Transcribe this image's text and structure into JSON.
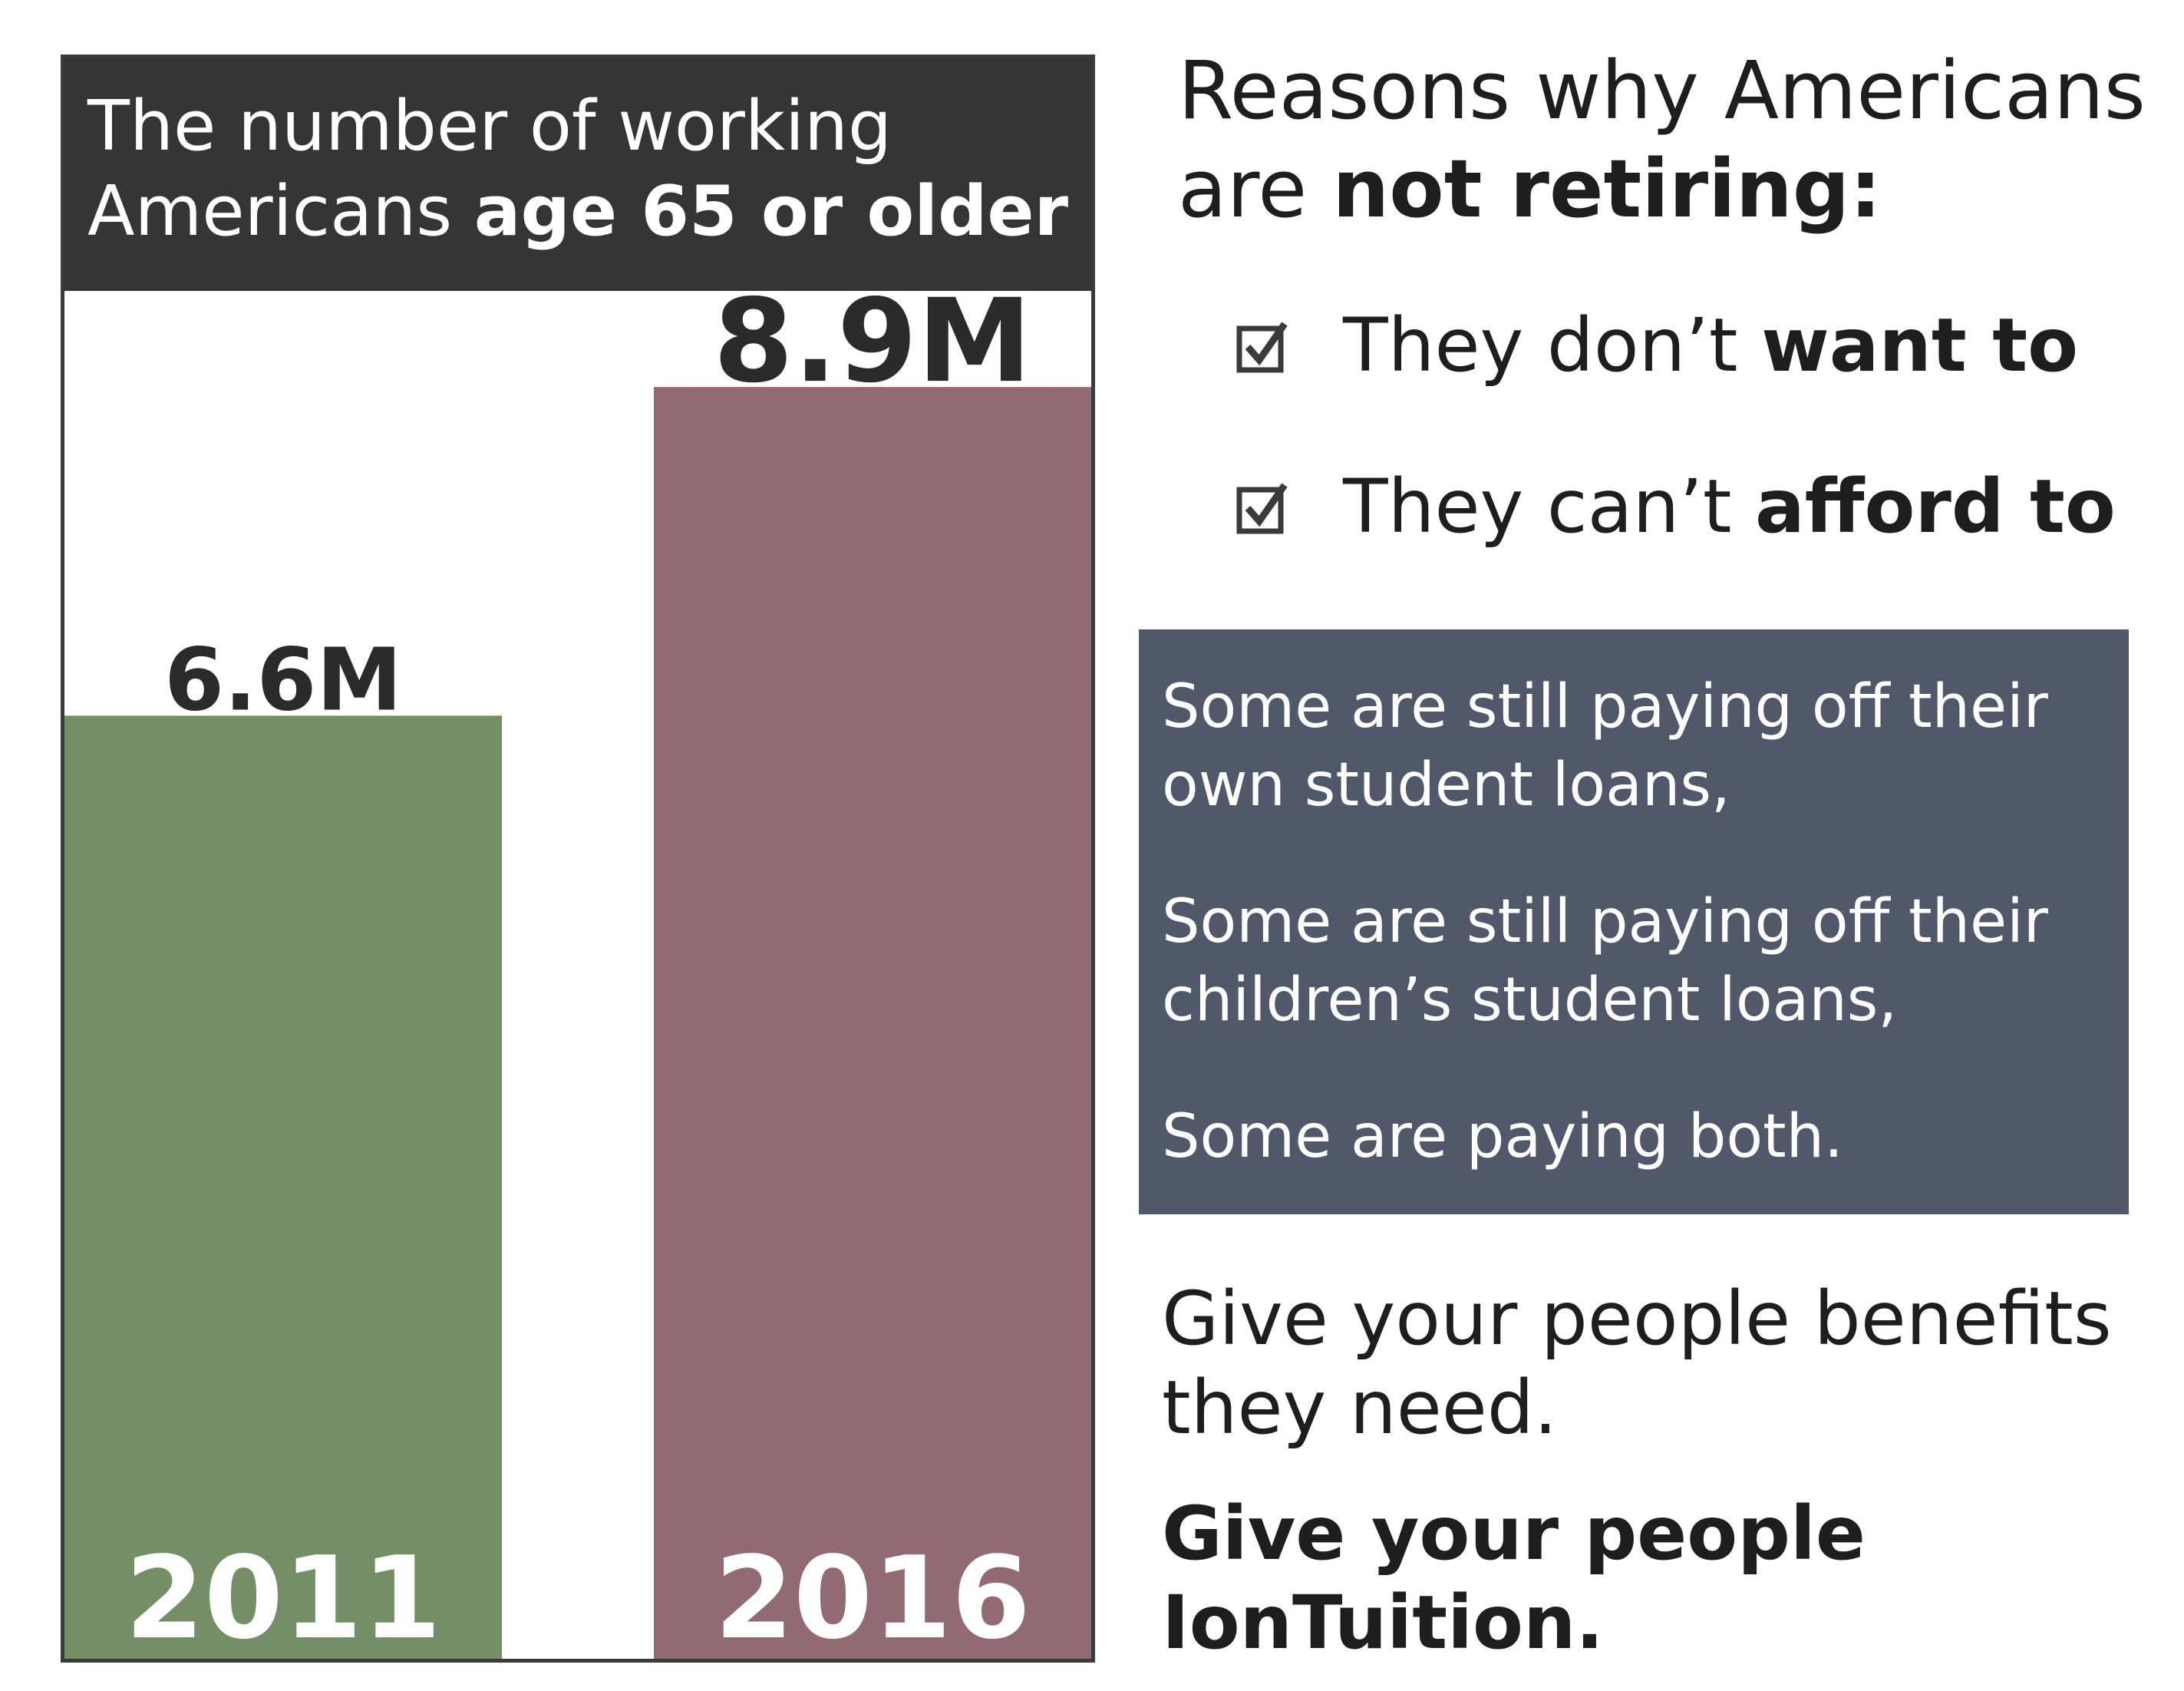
{
  "chart_data": {
    "type": "bar",
    "title_parts": [
      "The number of working",
      "Americans ",
      "age 65 or older"
    ],
    "categories": [
      "2011",
      "2016"
    ],
    "values": [
      6.6,
      8.9
    ],
    "data_labels": [
      "6.6M",
      "8.9M"
    ],
    "unit": "M",
    "colors": [
      "#748f68",
      "#916a74"
    ],
    "ylim": [
      0,
      11.2
    ],
    "grid": false,
    "legend": "none"
  },
  "reasons": {
    "title_line1": "Reasons why Americans",
    "title_line2_plain": "are ",
    "title_line2_bold": "not retiring:",
    "items": [
      {
        "plain": "They don’t ",
        "bold": "want to",
        "checked": true
      },
      {
        "plain": "They can’t ",
        "bold": "afford to",
        "checked": true
      }
    ]
  },
  "loans_box": {
    "bg_color": "#505869",
    "p1_line1": "Some are still paying off their",
    "p1_line2": "own student loans,",
    "p2_line1": "Some are still paying off their",
    "p2_line2": "children’s student loans,",
    "p3": "Some are paying both."
  },
  "cta": {
    "line1a": "Give your people benefits",
    "line1b": "they need.",
    "line2a": "Give your people",
    "line2b": "IonTuition."
  }
}
